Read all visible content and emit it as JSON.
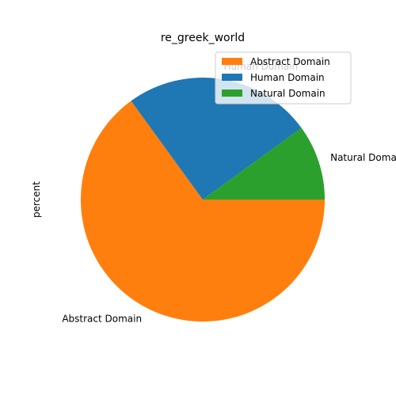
{
  "chart_data": {
    "type": "pie",
    "title": "re_greek_world",
    "ylabel": "percent",
    "categories": [
      "Abstract Domain",
      "Human Domain",
      "Natural Domain"
    ],
    "values": [
      65,
      25,
      10
    ],
    "colors": [
      "#ff7f0e",
      "#1f77b4",
      "#2ca02c"
    ],
    "start_angle_deg": 0,
    "direction": "clockwise",
    "legend": {
      "placement": "top-right",
      "entries": [
        "Abstract Domain",
        "Human Domain",
        "Natural Domain"
      ]
    }
  }
}
